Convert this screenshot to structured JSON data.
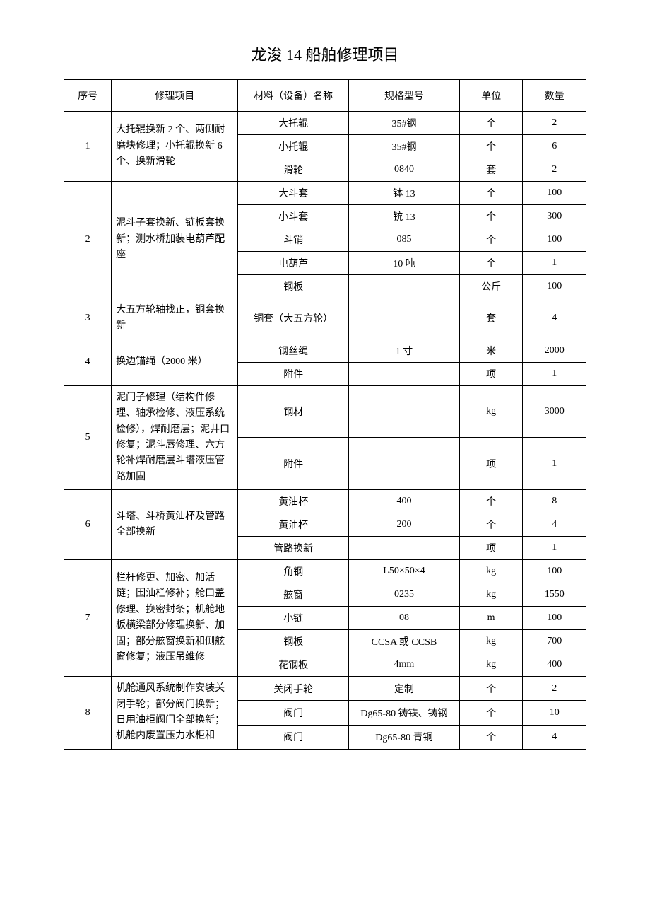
{
  "title": "龙浚 14 船舶修理项目",
  "headers": {
    "seq": "序号",
    "project": "修理项目",
    "material": "材料（设备）名称",
    "spec": "规格型号",
    "unit": "单位",
    "qty": "数量"
  },
  "rows": [
    {
      "seq": "1",
      "project": "大托辊换新 2 个、两侧耐磨块修理；小托辊换新 6 个、换新滑轮",
      "items": [
        {
          "material": "大托辊",
          "spec": "35#钢",
          "unit": "个",
          "qty": "2"
        },
        {
          "material": "小托辊",
          "spec": "35#钢",
          "unit": "个",
          "qty": "6"
        },
        {
          "material": "滑轮",
          "spec": "0840",
          "unit": "套",
          "qty": "2"
        }
      ]
    },
    {
      "seq": "2",
      "project": "泥斗子套换新、链板套换新；测水桥加装电葫芦配座",
      "items": [
        {
          "material": "大斗套",
          "spec": "钵 13",
          "unit": "个",
          "qty": "100"
        },
        {
          "material": "小斗套",
          "spec": "铳 13",
          "unit": "个",
          "qty": "300"
        },
        {
          "material": "斗销",
          "spec": "085",
          "unit": "个",
          "qty": "100"
        },
        {
          "material": "电葫芦",
          "spec": "10 吨",
          "unit": "个",
          "qty": "1"
        },
        {
          "material": "钢板",
          "spec": "",
          "unit": "公斤",
          "qty": "100"
        }
      ]
    },
    {
      "seq": "3",
      "project": "大五方轮轴找正，铜套换新",
      "items": [
        {
          "material": "铜套（大五方轮）",
          "spec": "",
          "unit": "套",
          "qty": "4"
        }
      ]
    },
    {
      "seq": "4",
      "project": "换边锚绳（2000 米）",
      "items": [
        {
          "material": "钢丝绳",
          "spec": "1 寸",
          "unit": "米",
          "qty": "2000"
        },
        {
          "material": "附件",
          "spec": "",
          "unit": "项",
          "qty": "1"
        }
      ]
    },
    {
      "seq": "5",
      "project": "泥门子修理（结构件修理、轴承检修、液压系统检修），焊耐磨层；泥井口修复；泥斗唇修理、六方轮补焊耐磨层斗塔液压管路加固",
      "items": [
        {
          "material": "钢材",
          "spec": "",
          "unit": "kg",
          "qty": "3000"
        },
        {
          "material": "附件",
          "spec": "",
          "unit": "项",
          "qty": "1"
        }
      ]
    },
    {
      "seq": "6",
      "project": "斗塔、斗桥黄油杯及管路全部换新",
      "items": [
        {
          "material": "黄油杯",
          "spec": "400",
          "unit": "个",
          "qty": "8"
        },
        {
          "material": "黄油杯",
          "spec": "200",
          "unit": "个",
          "qty": "4"
        },
        {
          "material": "管路换新",
          "spec": "",
          "unit": "项",
          "qty": "1"
        }
      ]
    },
    {
      "seq": "7",
      "project": "栏杆修更、加密、加活链；围油栏修补；舱口盖修理、换密封条；机舱地板横梁部分修理换新、加固；部分舷窗换新和侧舷窗修复；液压吊维修",
      "items": [
        {
          "material": "角钢",
          "spec": "L50×50×4",
          "unit": "kg",
          "qty": "100"
        },
        {
          "material": "舷窗",
          "spec": "0235",
          "unit": "kg",
          "qty": "1550"
        },
        {
          "material": "小链",
          "spec": "08",
          "unit": "m",
          "qty": "100"
        },
        {
          "material": "钢板",
          "spec": "CCSA 或 CCSB",
          "unit": "kg",
          "qty": "700"
        },
        {
          "material": "花钢板",
          "spec": "4mm",
          "unit": "kg",
          "qty": "400"
        }
      ]
    },
    {
      "seq": "8",
      "project": "机舱通风系统制作安装关闭手轮；部分阀门换新；日用油柜阀门全部换新；机舱内废置压力水柜和",
      "items": [
        {
          "material": "关闭手轮",
          "spec": "定制",
          "unit": "个",
          "qty": "2"
        },
        {
          "material": "阀门",
          "spec": "Dg65-80 铸铁、铸钢",
          "unit": "个",
          "qty": "10"
        },
        {
          "material": "阀门",
          "spec": "Dg65-80 青铜",
          "unit": "个",
          "qty": "4"
        }
      ]
    }
  ]
}
